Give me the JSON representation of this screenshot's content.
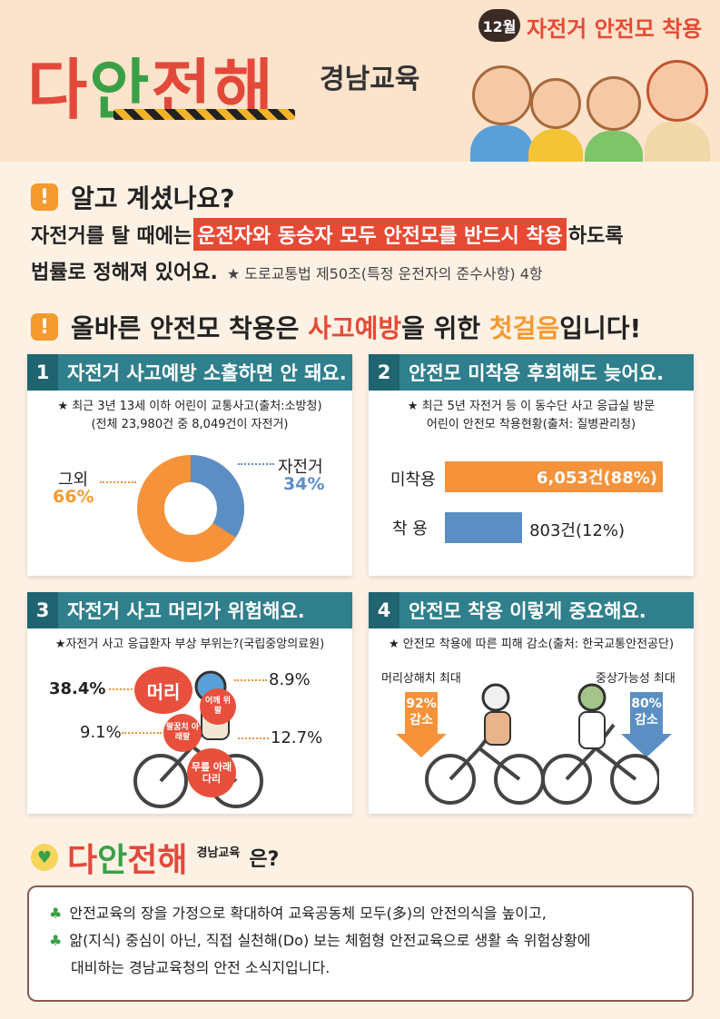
{
  "header": {
    "logo_text": [
      "다",
      "안",
      "전",
      "해"
    ],
    "logo_sub": "경남교육",
    "month_badge": "12월",
    "month_title": "자전거 안전모 착용"
  },
  "section1": {
    "title": "알고 계셨나요?",
    "line1_pre": "자전거를 탈 때에는",
    "line1_mark": "운전자와 동승자 모두 안전모를 반드시 착용",
    "line1_post": "하도록",
    "line2": "법률로 정해져 있어요.",
    "line2_source": "★ 도로교통법 제50조(특정 운전자의 준수사항) 4항"
  },
  "section2": {
    "title_pre": "올바른 안전모 착용은",
    "title_hl1": "사고예방",
    "title_mid": "을 위한",
    "title_hl2": "첫걸음",
    "title_post": "입니다!"
  },
  "card1": {
    "num": "1",
    "title": "자전거 사고예방 소홀하면 안 돼요.",
    "sub1": "★ 최근 3년 13세 이하 어린이 교통사고(출처:소방청)",
    "sub2": "(전체 23,980건 중 8,049건이 자전거)",
    "other_label": "그외",
    "other_value": "66%",
    "bike_label": "자전거",
    "bike_value": "34%",
    "donut": {
      "other": 66,
      "bike": 34
    }
  },
  "card2": {
    "num": "2",
    "title": "안전모 미착용 후회해도 늦어요.",
    "sub1": "★ 최근 5년 자전거 등 이 동수단 사고 응급실 방문",
    "sub2": "어린이 안전모 착용현황(출처: 질병관리청)",
    "bar1_label": "미착용",
    "bar1_value": "6,053건(88%)",
    "bar2_label": "착 용",
    "bar2_value": "803건(12%)",
    "bars": {
      "no_helmet_pct": 88,
      "helmet_pct": 12
    }
  },
  "card3": {
    "num": "3",
    "title": "자전거 사고 머리가 위험해요.",
    "sub": "★자전거 사고 응급환자 부상 부위는?(국립중앙의료원)",
    "head_label": "머리",
    "head_value": "38.4%",
    "shoulder_label": "어깨 위팔",
    "shoulder_value": "8.9%",
    "elbow_label": "팔꿈치 아래팔",
    "elbow_value": "9.1%",
    "knee_label": "무릎 아래다리",
    "knee_value": "12.7%"
  },
  "card4": {
    "num": "4",
    "title": "안전모 착용 이렇게 중요해요.",
    "sub": "★ 안전모 착용에 따른 피해 감소(출처: 한국교통안전공단)",
    "left_label": "머리상해치 최대",
    "left_value": "92%",
    "left_unit": "감소",
    "right_label": "중상가능성 최대",
    "right_value": "80%",
    "right_unit": "감소"
  },
  "footer": {
    "logo_text": [
      "다",
      "안",
      "전",
      "해"
    ],
    "logo_sub": "경남교육",
    "question": "은?",
    "line1": "안전교육의 장을 가정으로 확대하여 교육공동체 모두(多)의 안전의식을 높이고,",
    "line2": "앎(지식) 중심이 아닌, 직접 실천해(Do) 보는 체험형 안전교육으로 생활 속 위험상황에",
    "line3": "대비하는 경남교육청의 안전 소식지입니다."
  },
  "colors": {
    "accent_red": "#e64a35",
    "accent_orange": "#f59a2e",
    "teal": "#2f7f8c",
    "blue": "#5b8fc4"
  }
}
